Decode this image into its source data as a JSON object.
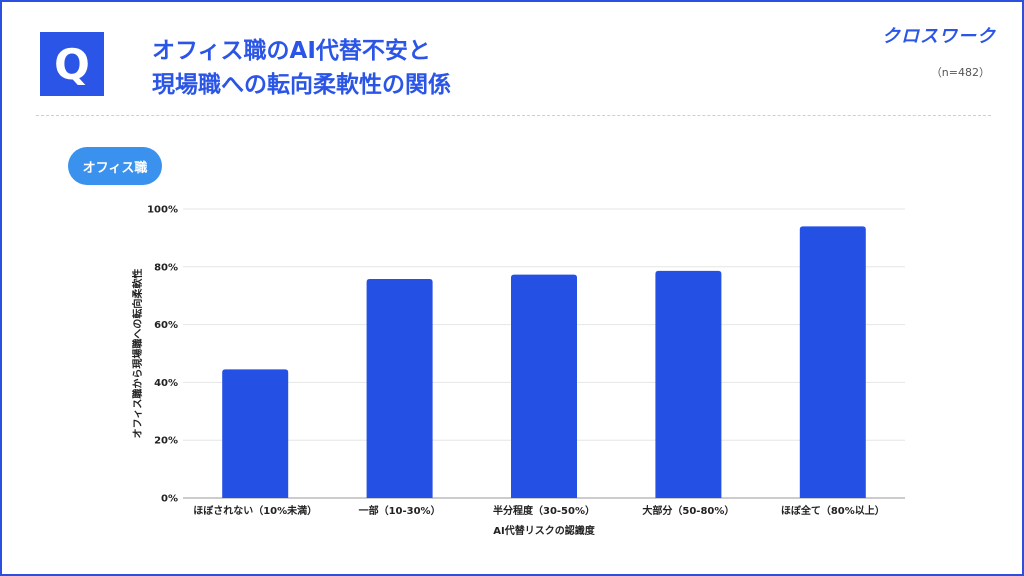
{
  "header": {
    "badge": "Q",
    "title_line1": "オフィス職のAI代替不安と",
    "title_line2": "現場職への転向柔軟性の関係",
    "logo": "クロスワーク",
    "sample": "（n=482）"
  },
  "filter_pill": "オフィス職",
  "colors": {
    "accent": "#2b55e6",
    "bar": "#2451e3",
    "pill": "#3a92ee"
  },
  "chart_data": {
    "type": "bar",
    "categories": [
      "ほぼされない（10%未満）",
      "一部（10-30%）",
      "半分程度（30-50%）",
      "大部分（50-80%）",
      "ほぼ全て（80%以上）"
    ],
    "values": [
      44.5,
      75.8,
      77.3,
      78.6,
      94.0
    ],
    "xlabel": "AI代替リスクの認識度",
    "ylabel": "オフィス職から現場職への転向柔軟性",
    "ylim": [
      0,
      100
    ],
    "yticks": [
      "0%",
      "20%",
      "40%",
      "60%",
      "80%",
      "100%"
    ],
    "grid": true
  }
}
